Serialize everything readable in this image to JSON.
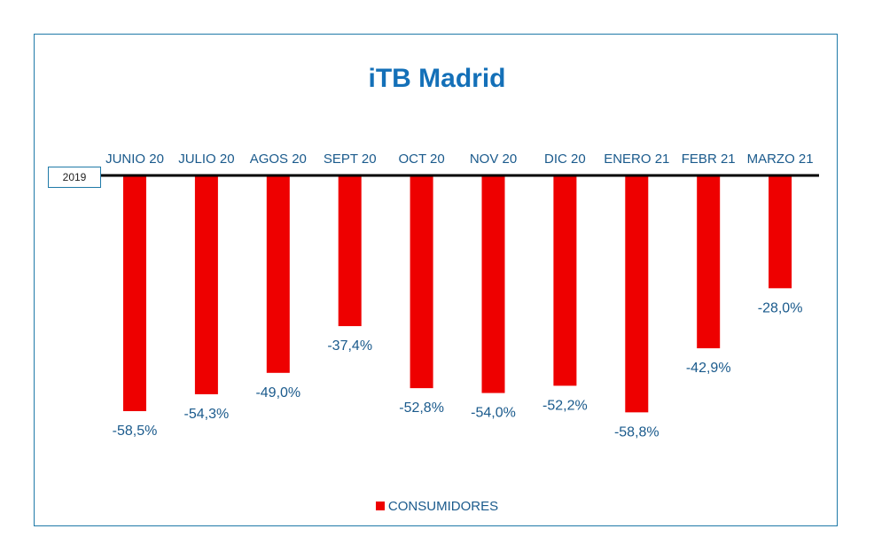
{
  "chart_data": {
    "type": "bar",
    "title": "iTB Madrid",
    "baseline_label": "2019",
    "categories": [
      "JUNIO 20",
      "JULIO 20",
      "AGOS 20",
      "SEPT 20",
      "OCT 20",
      "NOV 20",
      "DIC 20",
      "ENERO 21",
      "FEBR 21",
      "MARZO 21"
    ],
    "series": [
      {
        "name": "CONSUMIDORES",
        "color": "#ee0000",
        "values": [
          -58.5,
          -54.3,
          -49.0,
          -37.4,
          -52.8,
          -54.0,
          -52.2,
          -58.8,
          -42.9,
          -28.0
        ],
        "labels": [
          "-58,5%",
          "-54,3%",
          "-49,0%",
          "-37,4%",
          "-52,8%",
          "-54,0%",
          "-52,2%",
          "-58,8%",
          "-42,9%",
          "-28,0%"
        ]
      }
    ],
    "ylim": [
      -60,
      0
    ],
    "legend_position": "bottom",
    "grid": false
  }
}
